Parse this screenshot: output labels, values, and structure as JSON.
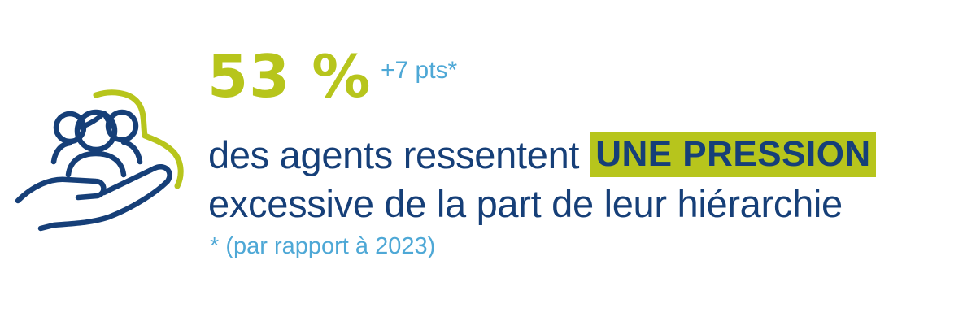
{
  "icon": {
    "name": "hand-holding-people-icon",
    "colors": {
      "primary": "#163f78",
      "accent": "#b7c51c"
    }
  },
  "stat": {
    "value": "53 %",
    "delta": "+7 pts*"
  },
  "headline": {
    "line1_prefix": "des agents ressentent",
    "highlight": "UNE PRESSION",
    "line2": "excessive de la part de leur hiérarchie"
  },
  "footnote": "* (par rapport à 2023)",
  "colors": {
    "accent_green": "#b7c51c",
    "navy": "#163f78",
    "light_blue": "#4ea8d6"
  }
}
